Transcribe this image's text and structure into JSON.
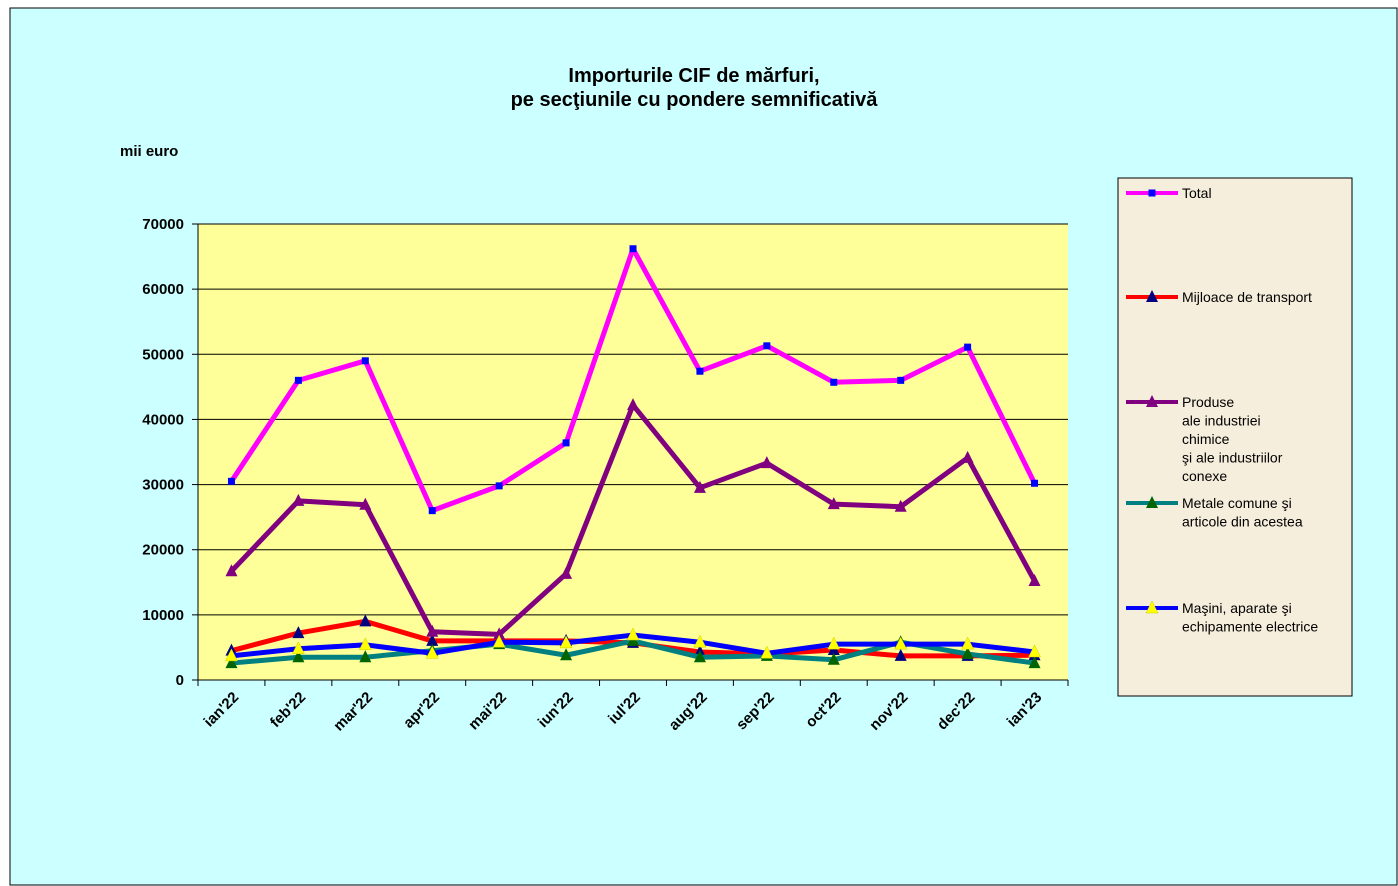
{
  "chart_data": {
    "type": "line",
    "title": "Importurile CIF de mărfuri,\npe secţiunile cu pondere semnificativă",
    "y_label": "mii euro",
    "categories": [
      "ian'22",
      "feb'22",
      "mar'22",
      "apr'22",
      "mai'22",
      "iun'22",
      "iul'22",
      "aug'22",
      "sep'22",
      "oct'22",
      "nov'22",
      "dec'22",
      "ian'23"
    ],
    "ylim": [
      0,
      70000
    ],
    "yticks": [
      0,
      10000,
      20000,
      30000,
      40000,
      50000,
      60000,
      70000
    ],
    "grid": true,
    "legend": "right",
    "series": [
      {
        "name": "Total",
        "color": "#ff00ff",
        "marker": "square",
        "marker_color": "#0000ff",
        "values": [
          30500,
          46000,
          49000,
          26000,
          29800,
          36400,
          66200,
          47400,
          51300,
          45700,
          46000,
          51100,
          30200
        ]
      },
      {
        "name": "Mijloace de transport",
        "color": "#ff0000",
        "marker": "triangle",
        "marker_color": "#000080",
        "values": [
          4500,
          7200,
          9000,
          6000,
          6000,
          6000,
          5700,
          4300,
          4000,
          4600,
          3700,
          3700,
          3800
        ]
      },
      {
        "name": "Produse\nale industriei\nchimice\nşi ale industriilor\nconexe",
        "color": "#800080",
        "marker": "triangle",
        "marker_color": "#800080",
        "values": [
          16700,
          27500,
          26900,
          7400,
          7000,
          16300,
          42200,
          29500,
          33300,
          27000,
          26600,
          34100,
          15200
        ]
      },
      {
        "name": "Metale comune şi\narticole din acestea",
        "color": "#008080",
        "marker": "triangle",
        "marker_color": "#006400",
        "values": [
          2600,
          3500,
          3500,
          4500,
          5500,
          3800,
          6000,
          3500,
          3700,
          3100,
          5800,
          4000,
          2600
        ]
      },
      {
        "name": "Maşini, aparate şi\nechipamente electrice",
        "color": "#0000ff",
        "marker": "triangle",
        "marker_color": "#ffff00",
        "values": [
          3700,
          4800,
          5400,
          4100,
          5800,
          5700,
          6900,
          5800,
          4100,
          5500,
          5500,
          5500,
          4300
        ]
      }
    ]
  }
}
